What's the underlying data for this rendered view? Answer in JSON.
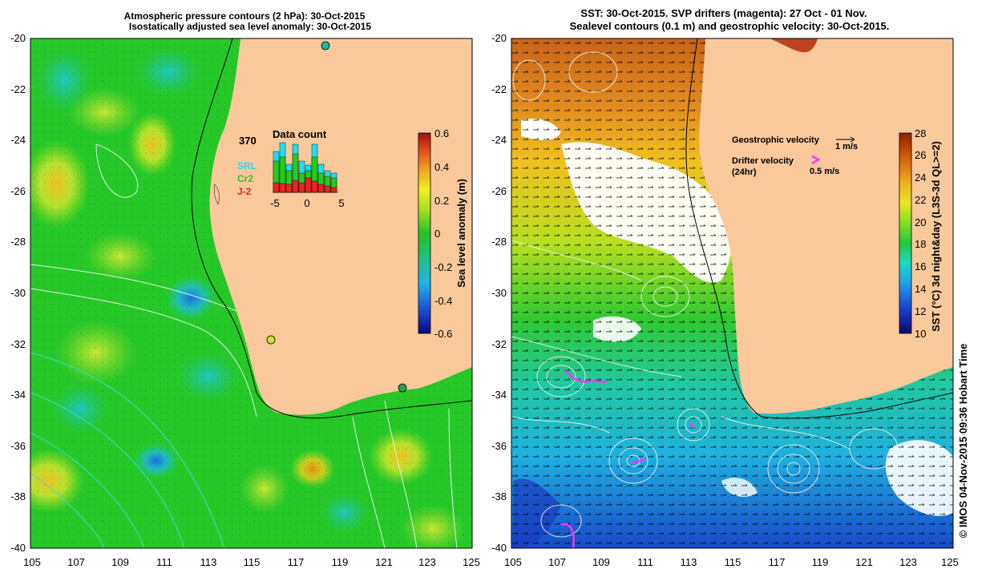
{
  "left_panel": {
    "title_line1": "Atmospheric pressure contours (2 hPa): 30-Oct-2015",
    "title_line2": "Isostatically adjusted sea level anomaly: 30-Oct-2015",
    "y_ticks": [
      "-20",
      "-22",
      "-24",
      "-26",
      "-28",
      "-30",
      "-32",
      "-34",
      "-36",
      "-38",
      "-40"
    ],
    "x_ticks": [
      "105",
      "107",
      "109",
      "111",
      "113",
      "115",
      "117",
      "119",
      "121",
      "123",
      "125"
    ],
    "colorbar": {
      "label": "Sea level anomaly (m)",
      "ticks": [
        "0.6",
        "0.4",
        "0.2",
        "0",
        "-0.2",
        "-0.4",
        "-0.6"
      ]
    },
    "inset": {
      "title": "Data count",
      "max_label": "370",
      "x_labels": [
        "-5",
        "0",
        "5"
      ],
      "legend_srl": "SRL",
      "legend_cr2": "Cr2",
      "legend_j2": "J-2",
      "colors": {
        "srl": "#22ddee",
        "cr2": "#22cc22",
        "j2": "#ee2222"
      }
    }
  },
  "right_panel": {
    "title_line1": "SST: 30-Oct-2015. SVP drifters (magenta): 27 Oct - 01 Nov.",
    "title_line2": "Sealevel contours (0.1 m) and geostrophic velocity: 30-Oct-2015.",
    "y_ticks": [
      "-20",
      "-22",
      "-24",
      "-26",
      "-28",
      "-30",
      "-32",
      "-34",
      "-36",
      "-38",
      "-40"
    ],
    "x_ticks": [
      "105",
      "107",
      "109",
      "111",
      "113",
      "115",
      "117",
      "119",
      "121",
      "123",
      "125"
    ],
    "colorbar": {
      "label": "SST (°C) 3d night&day (L3S-3d QL>=2)",
      "ticks": [
        "28",
        "26",
        "24",
        "22",
        "20",
        "18",
        "16",
        "14",
        "12",
        "10"
      ]
    },
    "legend": {
      "geo_label": "Geostrophic velocity",
      "geo_scale": "1 m/s",
      "drifter_label": "Drifter velocity",
      "drifter_sub": "(24hr)",
      "drifter_scale": "0.5 m/s"
    }
  },
  "credit": "© IMOS 04-Nov-2015 09:36 Hobart Time",
  "colors": {
    "land": "#f9c89b",
    "magenta": "#ff33ff"
  }
}
